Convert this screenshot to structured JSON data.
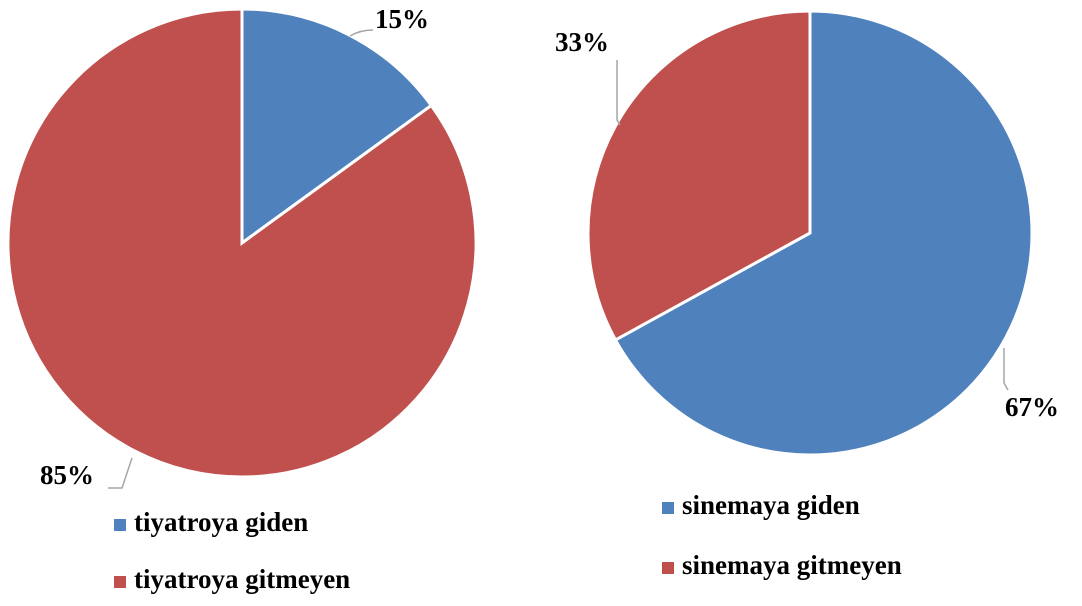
{
  "chart_data": [
    {
      "type": "pie",
      "categories": [
        "tiyatroya giden",
        "tiyatroya gitmeyen"
      ],
      "values": [
        15,
        85
      ],
      "value_labels": [
        "15%",
        "85%"
      ],
      "colors": [
        "#4f81bd",
        "#c0504d"
      ]
    },
    {
      "type": "pie",
      "categories": [
        "sinemaya giden",
        "sinemaya gitmeyen"
      ],
      "values": [
        67,
        33
      ],
      "value_labels": [
        "67%",
        "33%"
      ],
      "colors": [
        "#4f81bd",
        "#c0504d"
      ]
    }
  ]
}
